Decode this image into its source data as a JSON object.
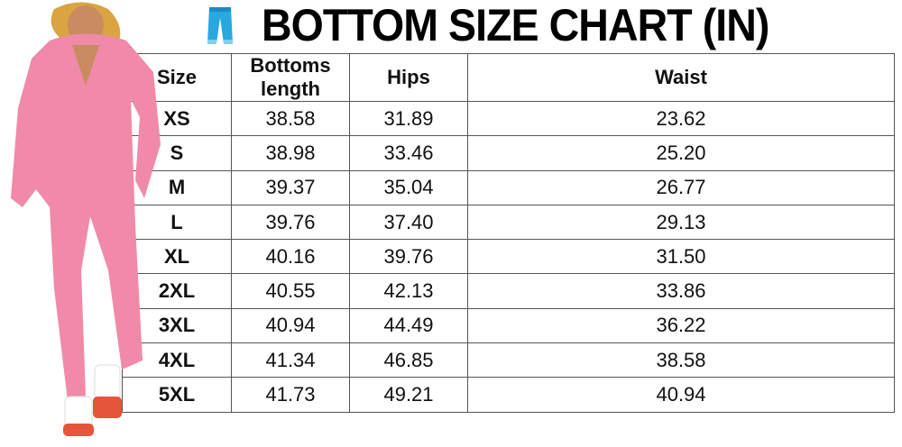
{
  "title": "BOTTOM SIZE CHART (IN)",
  "title_icon": "pants-icon",
  "accent_color": "#29a8e0",
  "model_color": "#f08aa8",
  "table": {
    "headers": [
      "Size",
      "Bottoms length",
      "Hips",
      "Waist"
    ],
    "rows": [
      [
        "XS",
        "38.58",
        "31.89",
        "23.62"
      ],
      [
        "S",
        "38.98",
        "33.46",
        "25.20"
      ],
      [
        "M",
        "39.37",
        "35.04",
        "26.77"
      ],
      [
        "L",
        "39.76",
        "37.40",
        "29.13"
      ],
      [
        "XL",
        "40.16",
        "39.76",
        "31.50"
      ],
      [
        "2XL",
        "40.55",
        "42.13",
        "33.86"
      ],
      [
        "3XL",
        "40.94",
        "44.49",
        "36.22"
      ],
      [
        "4XL",
        "41.34",
        "46.85",
        "38.58"
      ],
      [
        "5XL",
        "41.73",
        "49.21",
        "40.94"
      ]
    ]
  }
}
